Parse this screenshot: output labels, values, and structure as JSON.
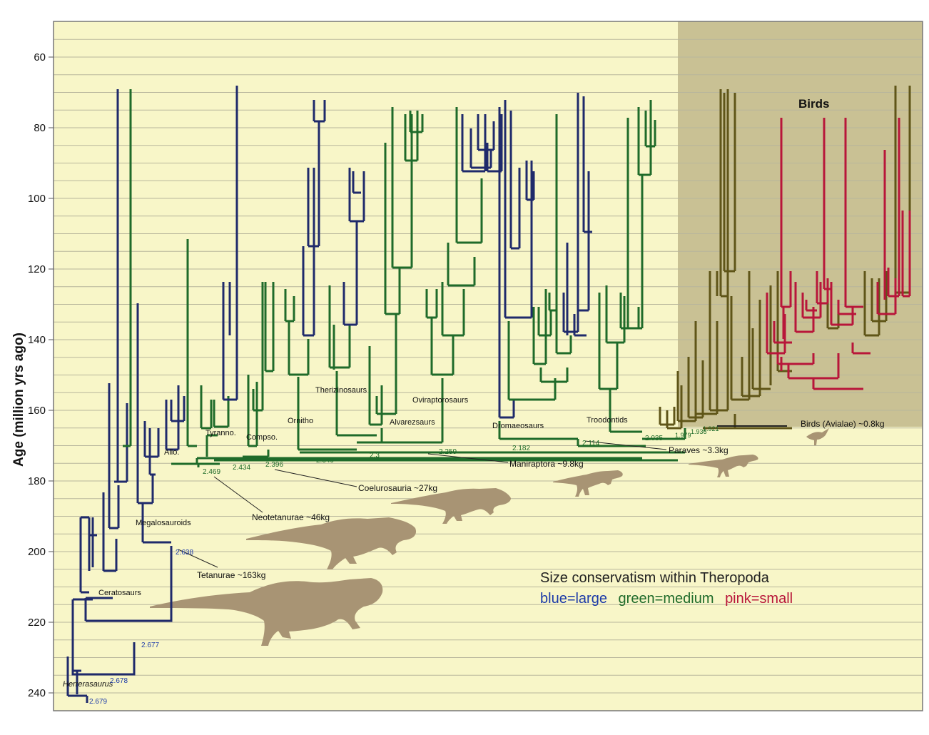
{
  "axis": {
    "label": "Age (million yrs ago)",
    "ticks": [
      60,
      80,
      100,
      120,
      140,
      160,
      180,
      200,
      220,
      240
    ],
    "range": [
      50,
      255
    ]
  },
  "colors": {
    "background": "#f8f6c8",
    "birds_zone": "#c9c194",
    "grid": "#b8b69c",
    "large": "#1f2a6b",
    "medium": "#1f6b2a",
    "small": "#b8163a",
    "bird_stem": "#5f5518",
    "silhouette": "#a89474"
  },
  "birds_label": "Birds",
  "clades": {
    "herrerasaurus": "Herrerasaurus",
    "ceratosaurs": "Ceratosaurs",
    "megalosauroids": "Megalosauroids",
    "allo": "Allo.",
    "tyranno": "Tyranno.",
    "compso": "Compso.",
    "ornitho": "Ornitho",
    "therizinosaurs": "Therizinosaurs",
    "alvarezsaurs": "Alvarezsaurs",
    "oviraptorosaurs": "Oviraptorosaurs",
    "dromaeosaurs": "Dromaeosaurs",
    "troodontids": "Troodontids"
  },
  "node_values": {
    "n2679": "2.679",
    "n2678": "2.678",
    "n2677": "2.677",
    "n2638": "2.638",
    "n2469": "2.469",
    "n2434": "2.434",
    "n2396": "2.396",
    "n2349": "2.349",
    "n23": "2.3",
    "n2259": "2.259",
    "n2182": "2.182",
    "n2114": "2.114",
    "n2035": "2.035",
    "n1979": "1.979",
    "n1936": "1.936",
    "n1921": "1.921"
  },
  "size_labels": {
    "tetanurae": "Tetanurae  ~163kg",
    "neotetanurae": "Neotetanurae  ~46kg",
    "coelurosauria": "Coelurosauria ~27kg",
    "maniraptora": "Maniraptora ~9.8kg",
    "paraves": "Paraves ~3.3kg",
    "birds": "Birds (Avialae) ~0.8kg"
  },
  "legend": {
    "title": "Size conservatism within Theropoda",
    "large": "blue=large",
    "medium": "green=medium",
    "small": "pink=small"
  }
}
